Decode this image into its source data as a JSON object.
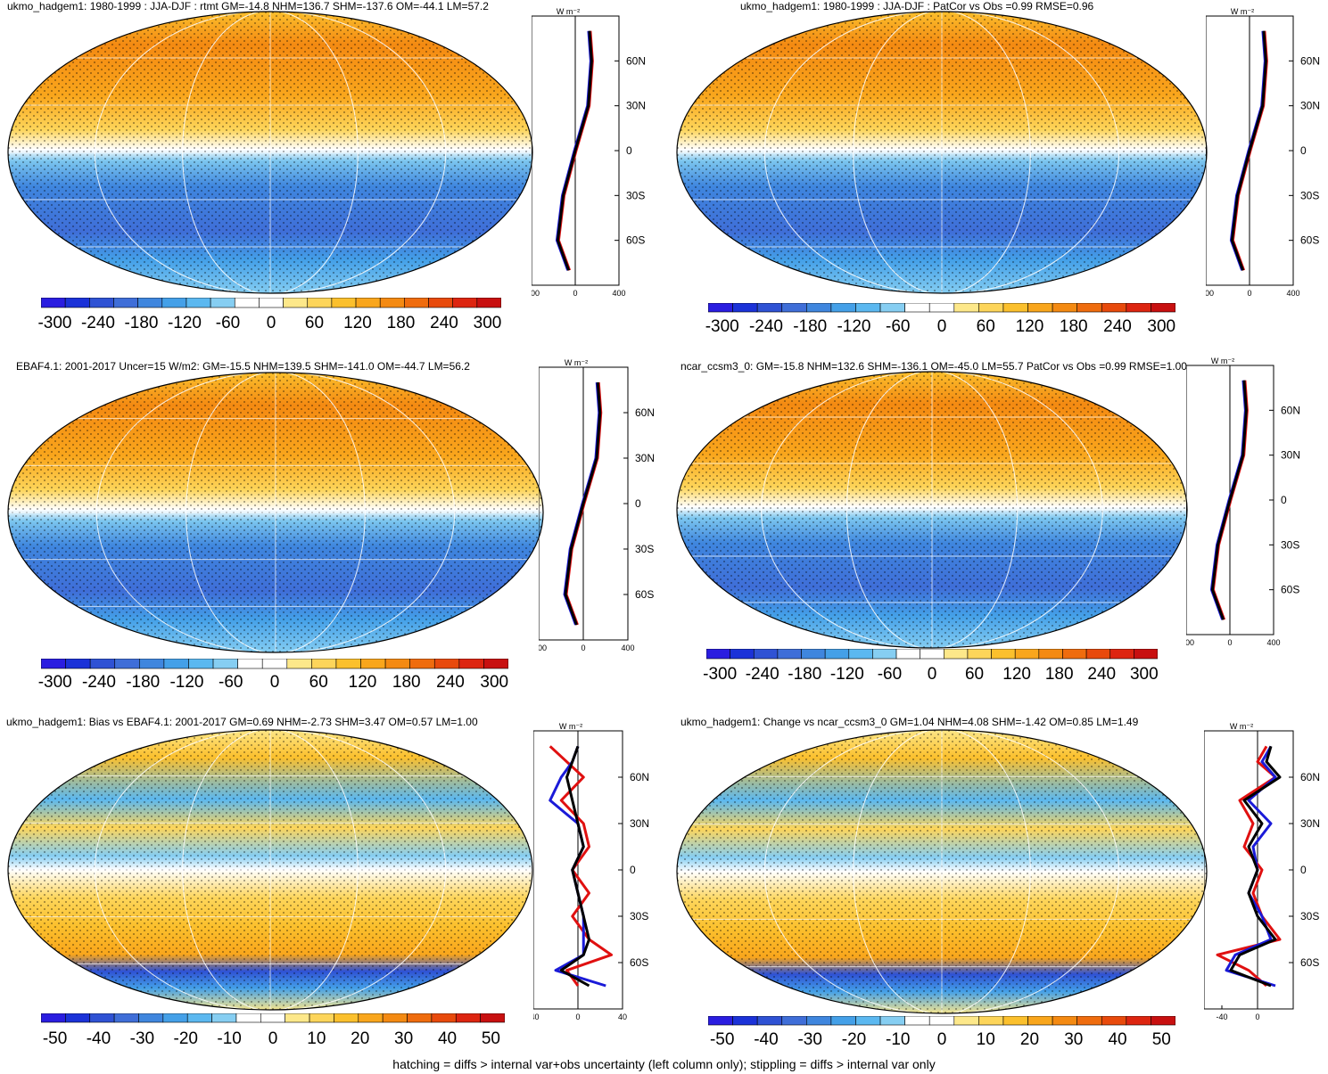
{
  "footer": "hatching = diffs > internal var+obs uncertainty (left column only); stippling = diffs > internal var only",
  "colors": {
    "big_scale": [
      "#2a1de0",
      "#1b32d8",
      "#2f52d4",
      "#3f6ed8",
      "#3f86de",
      "#44a0e8",
      "#5bb8f0",
      "#86cef2",
      "#ffffff",
      "#ffffff",
      "#fde88a",
      "#fdd55a",
      "#fbc02d",
      "#f9a61c",
      "#f48a12",
      "#ef6c0e",
      "#e84a0c",
      "#dd2510",
      "#c81010"
    ],
    "small_scale": [
      "#2a1de0",
      "#1b32d8",
      "#2f52d4",
      "#3f6ed8",
      "#3f86de",
      "#44a0e8",
      "#5bb8f0",
      "#86cef2",
      "#ffffff",
      "#ffffff",
      "#fde88a",
      "#fdd55a",
      "#fbc02d",
      "#f9a61c",
      "#f48a12",
      "#ef6c0e",
      "#e84a0c",
      "#dd2510",
      "#c81010"
    ],
    "model_line": "#000000",
    "obs_line": "#e01010",
    "ref_line": "#1a1ad8"
  },
  "panels": [
    {
      "title": "ukmo_hadgem1: 1980-1999 : JJA-DJF : rtmt GM=-14.8 NHM=136.7 SHM=-137.6 OM=-44.1 LM=57.2",
      "colorbar_labels": [
        "-300",
        "-240",
        "-180",
        "-120",
        "-60",
        "0",
        "60",
        "120",
        "180",
        "240",
        "300"
      ],
      "profile_unit": "W m⁻²",
      "profile_lat_labels": [
        "60N",
        "30N",
        "0",
        "30S",
        "60S"
      ],
      "profile_x_labels": [
        "-400",
        "0",
        "400"
      ],
      "kind": "mean"
    },
    {
      "title": "ukmo_hadgem1: 1980-1999 : JJA-DJF : PatCor vs Obs =0.99 RMSE=0.96",
      "colorbar_labels": [
        "-300",
        "-240",
        "-180",
        "-120",
        "-60",
        "0",
        "60",
        "120",
        "180",
        "240",
        "300"
      ],
      "profile_unit": "W m⁻²",
      "profile_lat_labels": [
        "60N",
        "30N",
        "0",
        "30S",
        "60S"
      ],
      "profile_x_labels": [
        "-400",
        "0",
        "400"
      ],
      "kind": "mean"
    },
    {
      "title": "EBAF4.1: 2001-2017 Uncer=15 W/m2: GM=-15.5 NHM=139.5 SHM=-141.0 OM=-44.7 LM=56.2",
      "colorbar_labels": [
        "-300",
        "-240",
        "-180",
        "-120",
        "-60",
        "0",
        "60",
        "120",
        "180",
        "240",
        "300"
      ],
      "profile_unit": "W m⁻²",
      "profile_lat_labels": [
        "60N",
        "30N",
        "0",
        "30S",
        "60S"
      ],
      "profile_x_labels": [
        "-400",
        "0",
        "400"
      ],
      "kind": "mean"
    },
    {
      "title": "ncar_ccsm3_0: GM=-15.8 NHM=132.6 SHM=-136.1 OM=-45.0 LM=55.7 PatCor vs Obs =0.99 RMSE=1.00",
      "colorbar_labels": [
        "-300",
        "-240",
        "-180",
        "-120",
        "-60",
        "0",
        "60",
        "120",
        "180",
        "240",
        "300"
      ],
      "profile_unit": "W m⁻²",
      "profile_lat_labels": [
        "60N",
        "30N",
        "0",
        "30S",
        "60S"
      ],
      "profile_x_labels": [
        "-400",
        "0",
        "400"
      ],
      "kind": "mean"
    },
    {
      "title": "ukmo_hadgem1: Bias vs EBAF4.1: 2001-2017 GM=0.69 NHM=-2.73 SHM=3.47 OM=0.57 LM=1.00",
      "colorbar_labels": [
        "-50",
        "-40",
        "-30",
        "-20",
        "-10",
        "0",
        "10",
        "20",
        "30",
        "40",
        "50"
      ],
      "profile_unit": "W m⁻²",
      "profile_lat_labels": [
        "60N",
        "30N",
        "0",
        "30S",
        "60S"
      ],
      "profile_x_labels": [
        "-40",
        "0",
        "40"
      ],
      "kind": "diff"
    },
    {
      "title": "ukmo_hadgem1: Change vs ncar_ccsm3_0 GM=1.04 NHM=4.08 SHM=-1.42 OM=0.85 LM=1.49",
      "colorbar_labels": [
        "-50",
        "-40",
        "-30",
        "-20",
        "-10",
        "0",
        "10",
        "20",
        "30",
        "40",
        "50"
      ],
      "profile_unit": "W m⁻²",
      "profile_lat_labels": [
        "60N",
        "30N",
        "0",
        "30S",
        "60S"
      ],
      "profile_x_labels": [
        "-40",
        "0"
      ],
      "kind": "diff"
    }
  ],
  "chart_data": [
    {
      "type": "heatmap",
      "title": "ukmo_hadgem1: 1980-1999 : JJA-DJF : rtmt GM=-14.8 NHM=136.7 SHM=-137.6 OM=-44.1 LM=57.2",
      "colorbar_range": [
        -300,
        300
      ],
      "zonal_profile": {
        "lat": [
          80,
          60,
          30,
          0,
          -30,
          -60,
          -80
        ],
        "model": [
          130,
          150,
          120,
          0,
          -110,
          -160,
          -60
        ],
        "xlim": [
          -400,
          400
        ]
      }
    },
    {
      "type": "heatmap",
      "title": "ukmo_hadgem1: 1980-1999 : JJA-DJF : PatCor vs Obs =0.99 RMSE=0.96",
      "colorbar_range": [
        -300,
        300
      ],
      "zonal_profile": {
        "lat": [
          80,
          60,
          30,
          0,
          -30,
          -60,
          -80
        ],
        "model": [
          130,
          150,
          120,
          0,
          -110,
          -160,
          -60
        ],
        "xlim": [
          -400,
          400
        ]
      }
    },
    {
      "type": "heatmap",
      "title": "EBAF4.1: 2001-2017 Uncer=15 W/m2: GM=-15.5 NHM=139.5 SHM=-141.0 OM=-44.7 LM=56.2",
      "colorbar_range": [
        -300,
        300
      ],
      "zonal_profile": {
        "lat": [
          80,
          60,
          30,
          0,
          -30,
          -60,
          -80
        ],
        "model": [
          130,
          150,
          120,
          0,
          -110,
          -160,
          -60
        ],
        "xlim": [
          -400,
          400
        ]
      }
    },
    {
      "type": "heatmap",
      "title": "ncar_ccsm3_0: GM=-15.8 NHM=132.6 SHM=-136.1 OM=-45.0 LM=55.7 PatCor vs Obs =0.99 RMSE=1.00",
      "colorbar_range": [
        -300,
        300
      ],
      "zonal_profile": {
        "lat": [
          80,
          60,
          30,
          0,
          -30,
          -60,
          -80
        ],
        "model": [
          130,
          150,
          120,
          0,
          -110,
          -160,
          -60
        ],
        "xlim": [
          -400,
          400
        ]
      }
    },
    {
      "type": "heatmap",
      "title": "ukmo_hadgem1: Bias vs EBAF4.1: 2001-2017 GM=0.69 NHM=-2.73 SHM=3.47 OM=0.57 LM=1.00",
      "colorbar_range": [
        -50,
        50
      ],
      "zonal_profile": {
        "lat": [
          80,
          70,
          60,
          45,
          30,
          15,
          0,
          -15,
          -30,
          -45,
          -55,
          -65,
          -75
        ],
        "model": [
          0,
          -5,
          -10,
          -5,
          0,
          5,
          -5,
          0,
          5,
          10,
          5,
          -15,
          10
        ],
        "obs": [
          -25,
          -10,
          5,
          -15,
          5,
          10,
          -5,
          10,
          -5,
          10,
          30,
          -10,
          0
        ],
        "ref": [
          0,
          -5,
          -15,
          -25,
          0,
          5,
          -5,
          0,
          5,
          5,
          5,
          -20,
          25
        ],
        "xlim": [
          -40,
          40
        ]
      }
    },
    {
      "type": "heatmap",
      "title": "ukmo_hadgem1: Change vs ncar_ccsm3_0 GM=1.04 NHM=4.08 SHM=-1.42 OM=0.85 LM=1.49",
      "colorbar_range": [
        -50,
        50
      ],
      "zonal_profile": {
        "lat": [
          80,
          70,
          60,
          45,
          30,
          15,
          0,
          -15,
          -30,
          -45,
          -55,
          -65,
          -75
        ],
        "model": [
          15,
          10,
          25,
          -15,
          5,
          -10,
          0,
          -10,
          0,
          20,
          -20,
          -30,
          15
        ],
        "obs": [
          10,
          0,
          20,
          -20,
          -5,
          -15,
          5,
          -5,
          5,
          25,
          -45,
          -10,
          10
        ],
        "ref": [
          15,
          5,
          20,
          -10,
          15,
          -5,
          0,
          -10,
          5,
          15,
          -25,
          -35,
          20
        ],
        "xlim": [
          -60,
          40
        ]
      }
    }
  ]
}
